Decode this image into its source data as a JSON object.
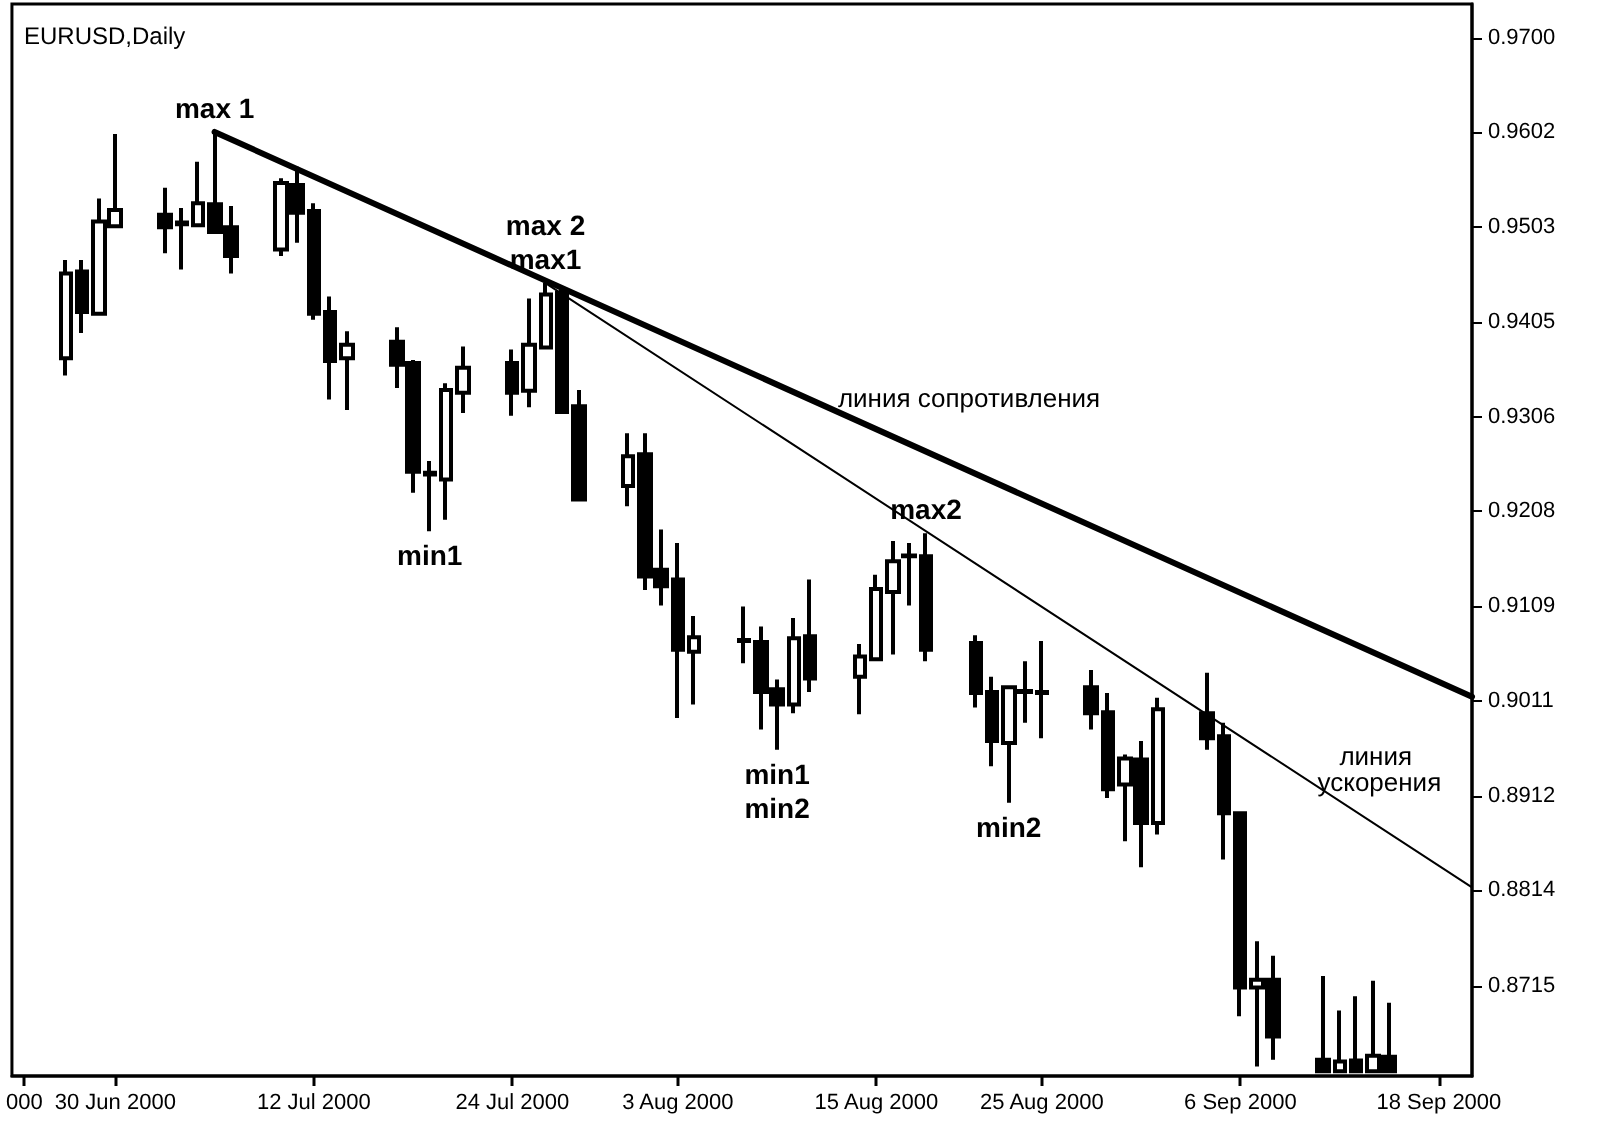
{
  "chart_data": {
    "type": "candlestick",
    "title": "EURUSD,Daily",
    "color": "#000000",
    "x": [
      "2000-06-27",
      "2000-06-28",
      "2000-06-29",
      "2000-06-30",
      "2000-07-03",
      "2000-07-04",
      "2000-07-05",
      "2000-07-06",
      "2000-07-07",
      "2000-07-10",
      "2000-07-11",
      "2000-07-12",
      "2000-07-13",
      "2000-07-14",
      "2000-07-17",
      "2000-07-18",
      "2000-07-19",
      "2000-07-20",
      "2000-07-21",
      "2000-07-24",
      "2000-07-25",
      "2000-07-26",
      "2000-07-27",
      "2000-07-28",
      "2000-07-31",
      "2000-08-01",
      "2000-08-02",
      "2000-08-03",
      "2000-08-04",
      "2000-08-07",
      "2000-08-08",
      "2000-08-09",
      "2000-08-10",
      "2000-08-11",
      "2000-08-14",
      "2000-08-15",
      "2000-08-16",
      "2000-08-17",
      "2000-08-18",
      "2000-08-21",
      "2000-08-22",
      "2000-08-23",
      "2000-08-24",
      "2000-08-25",
      "2000-08-28",
      "2000-08-29",
      "2000-08-30",
      "2000-08-31",
      "2000-09-01",
      "2000-09-04",
      "2000-09-05",
      "2000-09-06",
      "2000-09-07",
      "2000-09-08",
      "2000-09-11",
      "2000-09-12",
      "2000-09-13",
      "2000-09-14",
      "2000-09-15"
    ],
    "ohlc": [
      [
        0.9367,
        0.9469,
        0.9349,
        0.9455
      ],
      [
        0.9457,
        0.9469,
        0.9393,
        0.9415
      ],
      [
        0.9413,
        0.9533,
        0.9411,
        0.9509
      ],
      [
        0.9504,
        0.96,
        0.9503,
        0.9521
      ],
      [
        0.9516,
        0.9544,
        0.9476,
        0.9503
      ],
      [
        0.9508,
        0.9523,
        0.9459,
        0.9506
      ],
      [
        0.9505,
        0.9571,
        0.9504,
        0.9528
      ],
      [
        0.9527,
        0.9602,
        0.9496,
        0.9498
      ],
      [
        0.9503,
        0.9525,
        0.9455,
        0.9473
      ],
      [
        0.948,
        0.9554,
        0.9473,
        0.9549
      ],
      [
        0.9547,
        0.9566,
        0.9487,
        0.9518
      ],
      [
        0.952,
        0.9528,
        0.9407,
        0.9413
      ],
      [
        0.9415,
        0.9431,
        0.9324,
        0.9364
      ],
      [
        0.9367,
        0.9395,
        0.9313,
        0.9381
      ],
      [
        0.9384,
        0.9399,
        0.9336,
        0.936
      ],
      [
        0.9362,
        0.9365,
        0.9227,
        0.9249
      ],
      [
        0.9248,
        0.926,
        0.9187,
        0.9246
      ],
      [
        0.9241,
        0.9341,
        0.9199,
        0.9334
      ],
      [
        0.9331,
        0.9379,
        0.931,
        0.9357
      ],
      [
        0.9362,
        0.9376,
        0.9307,
        0.9331
      ],
      [
        0.9333,
        0.9429,
        0.9316,
        0.9381
      ],
      [
        0.9378,
        0.9445,
        0.9376,
        0.9433
      ],
      [
        0.9435,
        0.9438,
        0.9309,
        0.9311
      ],
      [
        0.9317,
        0.9334,
        0.9219,
        0.922
      ],
      [
        0.9234,
        0.9289,
        0.9213,
        0.9265
      ],
      [
        0.9267,
        0.9289,
        0.9126,
        0.914
      ],
      [
        0.9147,
        0.9189,
        0.911,
        0.913
      ],
      [
        0.9137,
        0.9175,
        0.8993,
        0.9064
      ],
      [
        0.9062,
        0.9099,
        0.9007,
        0.9077
      ],
      [
        0.9074,
        0.9109,
        0.905,
        0.9073
      ],
      [
        0.9072,
        0.9088,
        0.8981,
        0.902
      ],
      [
        0.9023,
        0.9033,
        0.896,
        0.9007
      ],
      [
        0.9007,
        0.9097,
        0.8998,
        0.9076
      ],
      [
        0.9078,
        0.9137,
        0.902,
        0.9034
      ],
      [
        0.9036,
        0.907,
        0.8997,
        0.9057
      ],
      [
        0.9054,
        0.9142,
        0.9052,
        0.9127
      ],
      [
        0.9124,
        0.9177,
        0.9059,
        0.9156
      ],
      [
        0.9162,
        0.9175,
        0.911,
        0.9161
      ],
      [
        0.9161,
        0.9185,
        0.9052,
        0.9064
      ],
      [
        0.9071,
        0.9079,
        0.9004,
        0.9019
      ],
      [
        0.902,
        0.9036,
        0.8943,
        0.8969
      ],
      [
        0.8967,
        0.9027,
        0.8905,
        0.9025
      ],
      [
        0.9021,
        0.9052,
        0.8988,
        0.902
      ],
      [
        0.902,
        0.9073,
        0.8972,
        0.9019
      ],
      [
        0.9025,
        0.9043,
        0.8981,
        0.8998
      ],
      [
        0.8999,
        0.9019,
        0.891,
        0.8919
      ],
      [
        0.8924,
        0.8955,
        0.8865,
        0.8951
      ],
      [
        0.895,
        0.8969,
        0.8838,
        0.8884
      ],
      [
        0.8884,
        0.9014,
        0.8872,
        0.9002
      ],
      [
        0.8998,
        0.904,
        0.896,
        0.8972
      ],
      [
        0.8974,
        0.8988,
        0.8846,
        0.8894
      ],
      [
        0.8894,
        0.8896,
        0.8683,
        0.8713
      ],
      [
        0.8713,
        0.8761,
        0.8631,
        0.8721
      ],
      [
        0.8721,
        0.8746,
        0.8638,
        0.8662
      ],
      [
        0.8638,
        0.8725,
        0.8624,
        0.8626
      ],
      [
        0.8626,
        0.8689,
        0.8624,
        0.8636
      ],
      [
        0.8637,
        0.8704,
        0.8624,
        0.8626
      ],
      [
        0.8626,
        0.872,
        0.8624,
        0.8642
      ],
      [
        0.8641,
        0.8697,
        0.8624,
        0.8626
      ]
    ],
    "series": [
      {
        "type": "line",
        "name": "линия сопротивления",
        "color": "#000000",
        "x": [
          "2000-07-06",
          "2000-09-20"
        ],
        "values": [
          0.9602,
          0.9015
        ]
      },
      {
        "type": "line",
        "name": "линия ускорения",
        "color": "#000000",
        "x": [
          "2000-07-26",
          "2000-09-20"
        ],
        "values": [
          0.9445,
          0.8817
        ]
      }
    ],
    "xlim": [
      "2000-06-23T18:00",
      "2000-09-20"
    ],
    "xticks": [
      {
        "value": "2000-06-24T12:00",
        "label": "000"
      },
      {
        "value": "2000-06-30",
        "label": "30 Jun 2000"
      },
      {
        "value": "2000-07-12",
        "label": "12 Jul 2000"
      },
      {
        "value": "2000-07-24",
        "label": "24 Jul 2000"
      },
      {
        "value": "2000-08-03",
        "label": "3 Aug 2000"
      },
      {
        "value": "2000-08-15",
        "label": "15 Aug 2000"
      },
      {
        "value": "2000-08-25",
        "label": "25 Aug 2000"
      },
      {
        "value": "2000-09-06",
        "label": "6 Sep 2000"
      },
      {
        "value": "2000-09-18",
        "label": "18 Sep 2000"
      }
    ],
    "ylim": [
      0.8621,
      0.9735
    ],
    "yticks": [
      {
        "value": 0.97,
        "label": "0.9700"
      },
      0.9602,
      0.9503,
      0.9405,
      0.9306,
      0.9208,
      0.9109,
      0.9011,
      0.8912,
      0.8814,
      0.8715
    ],
    "marker": "none",
    "annotations": [
      {
        "text": "max 1",
        "x": "2000-07-06",
        "y": 0.9602
      },
      {
        "text": "max1",
        "x": "2000-07-26",
        "y": 0.9445
      },
      {
        "text": "max 2",
        "x": "2000-07-26",
        "y": 0.9445
      },
      {
        "text": "min1",
        "x": "2000-07-19",
        "y": 0.9187
      },
      {
        "text": "min1",
        "x": "2000-08-09",
        "y": 0.896
      },
      {
        "text": "min2",
        "x": "2000-08-09",
        "y": 0.896
      },
      {
        "text": "max2",
        "x": "2000-08-18",
        "y": 0.9185
      },
      {
        "text": "min2",
        "x": "2000-08-23",
        "y": 0.8905
      }
    ]
  }
}
